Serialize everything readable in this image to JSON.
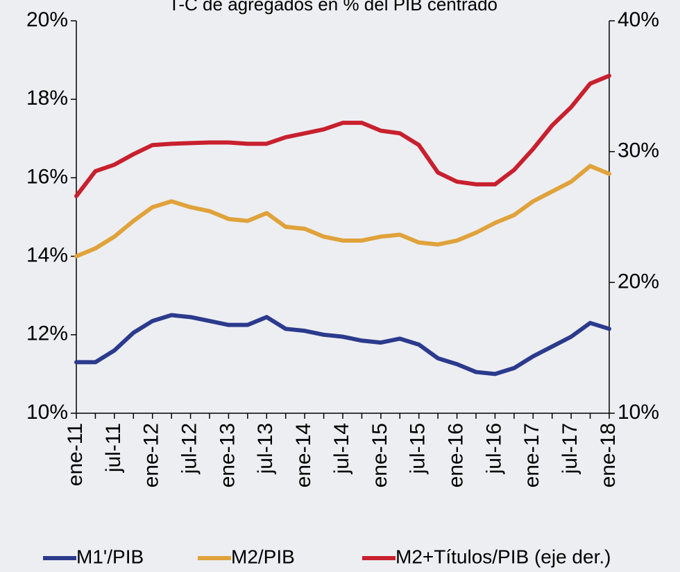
{
  "chart_data": {
    "type": "line",
    "title": "T-C de agregados en % del PIB centrado",
    "categories": [
      "ene-11",
      null,
      "jul-11",
      null,
      "ene-12",
      null,
      "jul-12",
      null,
      "ene-13",
      null,
      "jul-13",
      null,
      "ene-14",
      null,
      "jul-14",
      null,
      "ene-15",
      null,
      "jul-15",
      null,
      "ene-16",
      null,
      "jul-16",
      null,
      "ene-17",
      null,
      "jul-17",
      null,
      "ene-18"
    ],
    "series": [
      {
        "name": "M1'/PIB",
        "color": "#2b3a8c",
        "values": [
          11.3,
          11.3,
          11.6,
          12.05,
          12.35,
          12.5,
          12.45,
          12.35,
          12.25,
          12.25,
          12.45,
          12.15,
          12.1,
          12.0,
          11.95,
          11.85,
          11.8,
          11.9,
          11.75,
          11.4,
          11.25,
          11.05,
          11.0,
          11.15,
          11.45,
          11.7,
          11.95,
          12.3,
          12.15
        ]
      },
      {
        "name": "M2/PIB",
        "color": "#e0a23a",
        "values": [
          14.0,
          14.2,
          14.5,
          14.9,
          15.25,
          15.4,
          15.25,
          15.15,
          14.95,
          14.9,
          15.1,
          14.75,
          14.7,
          14.5,
          14.4,
          14.4,
          14.5,
          14.55,
          14.35,
          14.3,
          14.4,
          14.6,
          14.85,
          15.05,
          15.4,
          15.65,
          15.9,
          16.3,
          16.1
        ]
      },
      {
        "name": "M2+Títulos/PIB (eje der.)",
        "color": "#c8202e",
        "axis": "y2",
        "values": [
          26.6,
          28.5,
          29.0,
          29.8,
          30.5,
          30.6,
          30.65,
          30.7,
          30.7,
          30.6,
          30.6,
          31.1,
          31.4,
          31.7,
          32.2,
          32.2,
          31.6,
          31.4,
          30.5,
          28.4,
          27.7,
          27.5,
          27.5,
          28.6,
          30.2,
          32.0,
          33.4,
          35.2,
          35.8
        ]
      }
    ],
    "ylim": [
      10,
      20
    ],
    "yticks": [
      {
        "value": 10,
        "label": "10%"
      },
      {
        "value": 12,
        "label": "12%"
      },
      {
        "value": 14,
        "label": "14%"
      },
      {
        "value": 16,
        "label": "16%"
      },
      {
        "value": 18,
        "label": "18%"
      },
      {
        "value": 20,
        "label": "20%"
      }
    ],
    "y2lim": [
      10,
      40
    ],
    "y2ticks": [
      {
        "value": 10,
        "label": "10%"
      },
      {
        "value": 20,
        "label": "20%"
      },
      {
        "value": 30,
        "label": "30%"
      },
      {
        "value": 40,
        "label": "40%"
      }
    ],
    "legend": "bottom"
  }
}
